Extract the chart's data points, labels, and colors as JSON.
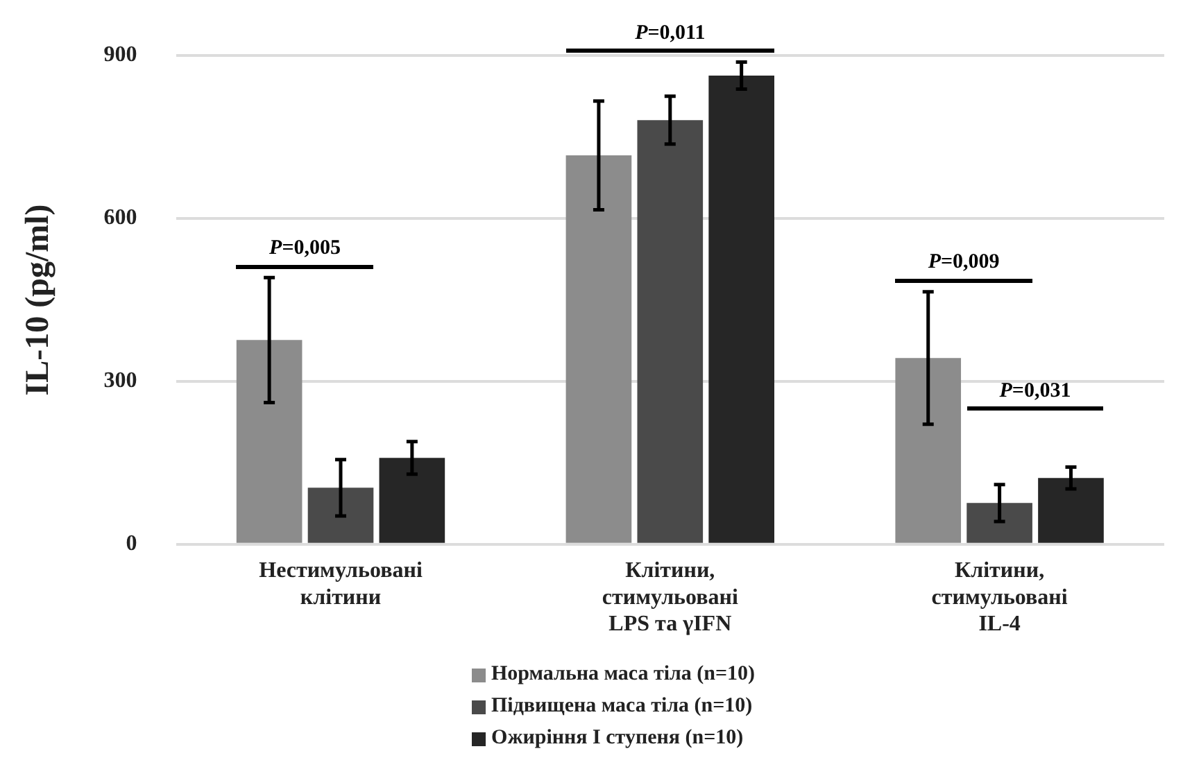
{
  "chart_data": {
    "type": "bar",
    "ylabel": "IL-10 (pg/ml)",
    "categories": [
      "Нестимульовані клітини",
      "Клітини, стимульовані LPS та γIFN",
      "Клітини, стимульовані IL-4"
    ],
    "series": [
      {
        "name": "Нормальна маса тіла (n=10)",
        "color": "#8c8c8c",
        "values": [
          376,
          716,
          343
        ],
        "errors": [
          115,
          100,
          122
        ]
      },
      {
        "name": "Підвищена маса тіла (n=10)",
        "color": "#4a4a4a",
        "values": [
          104,
          781,
          76
        ],
        "errors": [
          52,
          44,
          34
        ]
      },
      {
        "name": "Ожиріння I ступеня (n=10)",
        "color": "#262626",
        "values": [
          159,
          863,
          122
        ],
        "errors": [
          30,
          25,
          20
        ]
      }
    ],
    "ylim": [
      0,
      900
    ],
    "yticks": [
      0,
      300,
      600,
      900
    ],
    "grid": "y",
    "legend": "bottom",
    "annotations": [
      "P=0,005",
      "P=0,011",
      "P=0,009",
      "P=0,031"
    ]
  }
}
